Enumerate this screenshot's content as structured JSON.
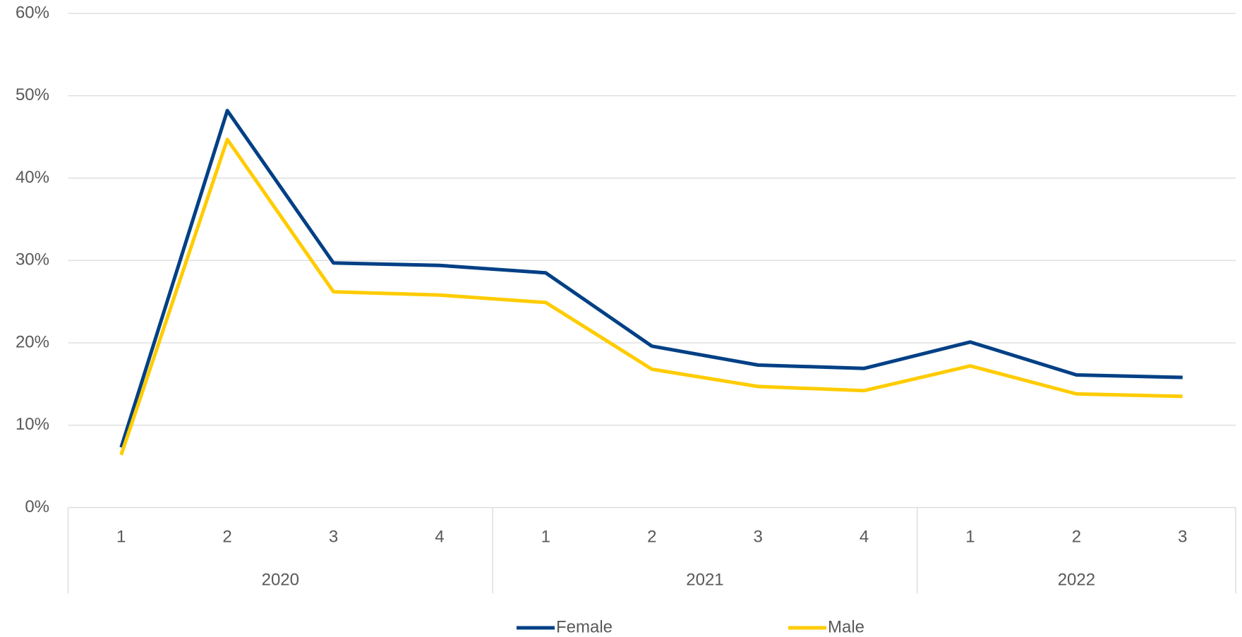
{
  "chart_data": {
    "type": "line",
    "groups": [
      {
        "name": "2020",
        "categories": [
          "1",
          "2",
          "3",
          "4"
        ]
      },
      {
        "name": "2021",
        "categories": [
          "1",
          "2",
          "3",
          "4"
        ]
      },
      {
        "name": "2022",
        "categories": [
          "1",
          "2",
          "3"
        ]
      }
    ],
    "series": [
      {
        "name": "Female",
        "color": "#004085",
        "values": [
          7.3,
          48.2,
          29.7,
          29.4,
          28.5,
          19.6,
          17.3,
          16.9,
          20.1,
          16.1,
          15.8
        ]
      },
      {
        "name": "Male",
        "color": "#ffcc00",
        "values": [
          6.4,
          44.7,
          26.2,
          25.8,
          24.9,
          16.8,
          14.7,
          14.2,
          17.2,
          13.8,
          13.5
        ]
      }
    ],
    "ylim": [
      0,
      60
    ],
    "yticks": [
      {
        "value": 0,
        "label": "0%"
      },
      {
        "value": 10,
        "label": "10%"
      },
      {
        "value": 20,
        "label": "20%"
      },
      {
        "value": 30,
        "label": "30%"
      },
      {
        "value": 40,
        "label": "40%"
      },
      {
        "value": 50,
        "label": "50%"
      },
      {
        "value": 60,
        "label": "60%"
      }
    ],
    "grid": true,
    "legend": "bottom"
  }
}
